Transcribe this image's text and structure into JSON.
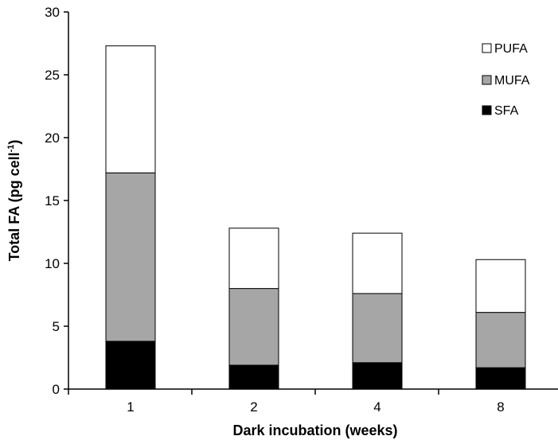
{
  "chart_data": {
    "type": "bar",
    "stacked": true,
    "categories": [
      "1",
      "2",
      "4",
      "8"
    ],
    "series": [
      {
        "name": "SFA",
        "color": "#000000",
        "values": [
          3.8,
          1.9,
          2.1,
          1.7
        ]
      },
      {
        "name": "MUFA",
        "color": "#a6a6a6",
        "values": [
          13.4,
          6.1,
          5.5,
          4.4
        ]
      },
      {
        "name": "PUFA",
        "color": "#ffffff",
        "values": [
          10.1,
          4.8,
          4.8,
          4.2
        ]
      }
    ],
    "xlabel": "Dark incubation (weeks)",
    "ylabel": "Total FA (pg cell",
    "ylabel_superscript": "-1",
    "ylabel_suffix": ")",
    "ylim": [
      0,
      30
    ],
    "yticks": [
      0,
      5,
      10,
      15,
      20,
      25,
      30
    ],
    "grid": false,
    "legend_position": "top-right",
    "legend_order": [
      "PUFA",
      "MUFA",
      "SFA"
    ]
  }
}
